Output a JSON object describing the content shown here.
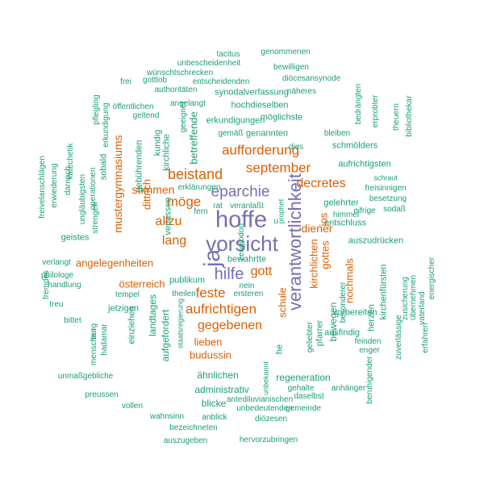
{
  "colors": {
    "purple": "#7570b3",
    "orange": "#d95f02",
    "teal": "#1b9e77"
  },
  "words": [
    {
      "t": "vorsicht",
      "c": "purple",
      "v": false
    },
    {
      "t": "hoffe",
      "c": "purple",
      "v": false
    },
    {
      "t": "eparchie",
      "c": "purple",
      "v": false
    },
    {
      "t": "hilfe",
      "c": "purple",
      "v": false
    },
    {
      "t": "ja",
      "c": "purple",
      "v": true
    },
    {
      "t": "verantwortlichkeit",
      "c": "purple",
      "v": true
    },
    {
      "t": "aufforderung",
      "c": "orange",
      "v": false
    },
    {
      "t": "september",
      "c": "orange",
      "v": false
    },
    {
      "t": "beistand",
      "c": "orange",
      "v": false
    },
    {
      "t": "möge",
      "c": "orange",
      "v": false
    },
    {
      "t": "allzu",
      "c": "orange",
      "v": false
    },
    {
      "t": "lang",
      "c": "orange",
      "v": false
    },
    {
      "t": "gott",
      "c": "orange",
      "v": false
    },
    {
      "t": "feste",
      "c": "orange",
      "v": false
    },
    {
      "t": "aufrichtigen",
      "c": "orange",
      "v": false
    },
    {
      "t": "gegebenen",
      "c": "orange",
      "v": false
    },
    {
      "t": "decretes",
      "c": "orange",
      "v": false
    },
    {
      "t": "stimmen",
      "c": "orange",
      "v": false
    },
    {
      "t": "diener",
      "c": "orange",
      "v": false
    },
    {
      "t": "angelegenheiten",
      "c": "orange",
      "v": false
    },
    {
      "t": "österreich",
      "c": "orange",
      "v": false
    },
    {
      "t": "lieben",
      "c": "orange",
      "v": false
    },
    {
      "t": "budussin",
      "c": "orange",
      "v": false
    },
    {
      "t": "mustergymnasiums",
      "c": "orange",
      "v": true
    },
    {
      "t": "dittrich",
      "c": "orange",
      "v": true
    },
    {
      "t": "schule",
      "c": "orange",
      "v": true
    },
    {
      "t": "nochmals",
      "c": "orange",
      "v": true
    },
    {
      "t": "gottes",
      "c": "orange",
      "v": true
    },
    {
      "t": "jos",
      "c": "orange",
      "v": true
    },
    {
      "t": "kirchlichen",
      "c": "orange",
      "v": true
    },
    {
      "t": "aufrichtigsten",
      "c": "teal",
      "v": false
    },
    {
      "t": "schmölders",
      "c": "teal",
      "v": false
    },
    {
      "t": "tacitus",
      "c": "teal",
      "v": false
    },
    {
      "t": "genommenen",
      "c": "teal",
      "v": false
    },
    {
      "t": "unbescheidenheit",
      "c": "teal",
      "v": false
    },
    {
      "t": "bewilligen",
      "c": "teal",
      "v": false
    },
    {
      "t": "wünschtschrecken",
      "c": "teal",
      "v": false
    },
    {
      "t": "gottlob",
      "c": "teal",
      "v": false
    },
    {
      "t": "entscheidenden",
      "c": "teal",
      "v": false
    },
    {
      "t": "diöcesansynode",
      "c": "teal",
      "v": false
    },
    {
      "t": "authoritäten",
      "c": "teal",
      "v": false
    },
    {
      "t": "synodalverfassung",
      "c": "teal",
      "v": false
    },
    {
      "t": "näheres",
      "c": "teal",
      "v": false
    },
    {
      "t": "angelangt",
      "c": "teal",
      "v": false
    },
    {
      "t": "hochdieselben",
      "c": "teal",
      "v": false
    },
    {
      "t": "öffentlichen",
      "c": "teal",
      "v": false
    },
    {
      "t": "geltend",
      "c": "teal",
      "v": false
    },
    {
      "t": "möglichste",
      "c": "teal",
      "v": false
    },
    {
      "t": "erkundigungen",
      "c": "teal",
      "v": false
    },
    {
      "t": "gemäß",
      "c": "teal",
      "v": false
    },
    {
      "t": "genannten",
      "c": "teal",
      "v": false
    },
    {
      "t": "bleiben",
      "c": "teal",
      "v": false
    },
    {
      "t": "dies",
      "c": "teal",
      "v": false
    },
    {
      "t": "schraut",
      "c": "teal",
      "v": false
    },
    {
      "t": "freisinnigen",
      "c": "teal",
      "v": false
    },
    {
      "t": "besetzung",
      "c": "teal",
      "v": false
    },
    {
      "t": "rat",
      "c": "teal",
      "v": false
    },
    {
      "t": "veranlaßt",
      "c": "teal",
      "v": false
    },
    {
      "t": "gelehrter",
      "c": "teal",
      "v": false
    },
    {
      "t": "himmel",
      "c": "teal",
      "v": false
    },
    {
      "t": "eifrige",
      "c": "teal",
      "v": false
    },
    {
      "t": "sodaß",
      "c": "teal",
      "v": false
    },
    {
      "t": "u",
      "c": "teal",
      "v": false
    },
    {
      "t": "entschluss",
      "c": "teal",
      "v": false
    },
    {
      "t": "geistes",
      "c": "teal",
      "v": false
    },
    {
      "t": "bewahrtte",
      "c": "teal",
      "v": false
    },
    {
      "t": "auszudrücken",
      "c": "teal",
      "v": false
    },
    {
      "t": "verlangt",
      "c": "teal",
      "v": false
    },
    {
      "t": "philologe",
      "c": "teal",
      "v": false
    },
    {
      "t": "handlung",
      "c": "teal",
      "v": false
    },
    {
      "t": "publikum",
      "c": "teal",
      "v": false
    },
    {
      "t": "nein",
      "c": "teal",
      "v": false
    },
    {
      "t": "ersteren",
      "c": "teal",
      "v": false
    },
    {
      "t": "theilen",
      "c": "teal",
      "v": false
    },
    {
      "t": "treu",
      "c": "teal",
      "v": false
    },
    {
      "t": "jetzigen",
      "c": "teal",
      "v": false
    },
    {
      "t": "tempel",
      "c": "teal",
      "v": false
    },
    {
      "t": "bittet",
      "c": "teal",
      "v": false
    },
    {
      "t": "vorbereiten",
      "c": "teal",
      "v": false
    },
    {
      "t": "ausfindig",
      "c": "teal",
      "v": false
    },
    {
      "t": "feinden",
      "c": "teal",
      "v": false
    },
    {
      "t": "enger",
      "c": "teal",
      "v": false
    },
    {
      "t": "ähnlichen",
      "c": "teal",
      "v": false
    },
    {
      "t": "regeneration",
      "c": "teal",
      "v": false
    },
    {
      "t": "administrativ",
      "c": "teal",
      "v": false
    },
    {
      "t": "unmaßgebliche",
      "c": "teal",
      "v": false
    },
    {
      "t": "gehalte",
      "c": "teal",
      "v": false
    },
    {
      "t": "anhänger",
      "c": "teal",
      "v": false
    },
    {
      "t": "blicke",
      "c": "teal",
      "v": false
    },
    {
      "t": "daselbst",
      "c": "teal",
      "v": false
    },
    {
      "t": "preussen",
      "c": "teal",
      "v": false
    },
    {
      "t": "antediluvianischen",
      "c": "teal",
      "v": false
    },
    {
      "t": "vollen",
      "c": "teal",
      "v": false
    },
    {
      "t": "unbedeutenden",
      "c": "teal",
      "v": false
    },
    {
      "t": "gemeinde",
      "c": "teal",
      "v": false
    },
    {
      "t": "wahnsinn",
      "c": "teal",
      "v": false
    },
    {
      "t": "anblick",
      "c": "teal",
      "v": false
    },
    {
      "t": "diözesen",
      "c": "teal",
      "v": false
    },
    {
      "t": "bezeichneten",
      "c": "teal",
      "v": false
    },
    {
      "t": "auszugeben",
      "c": "teal",
      "v": false
    },
    {
      "t": "hervorzubringen",
      "c": "teal",
      "v": false
    },
    {
      "t": "erklärungen",
      "c": "teal",
      "v": false
    },
    {
      "t": "fern",
      "c": "teal",
      "v": false
    },
    {
      "t": "frei",
      "c": "teal",
      "v": false
    },
    {
      "t": "pflegling",
      "c": "teal",
      "v": true
    },
    {
      "t": "erkundigung",
      "c": "teal",
      "v": true
    },
    {
      "t": "katechetik",
      "c": "teal",
      "v": true
    },
    {
      "t": "darnach",
      "c": "teal",
      "v": true
    },
    {
      "t": "erwiederung",
      "c": "teal",
      "v": true
    },
    {
      "t": "freivelanschlägen",
      "c": "teal",
      "v": true
    },
    {
      "t": "ungläubigsten",
      "c": "teal",
      "v": true
    },
    {
      "t": "operationen",
      "c": "teal",
      "v": true
    },
    {
      "t": "strengen",
      "c": "teal",
      "v": true
    },
    {
      "t": "sobald",
      "c": "teal",
      "v": true
    },
    {
      "t": "gebührenden",
      "c": "teal",
      "v": true
    },
    {
      "t": "kundig",
      "c": "teal",
      "v": true
    },
    {
      "t": "kirchliche",
      "c": "teal",
      "v": true
    },
    {
      "t": "betreffende",
      "c": "teal",
      "v": true
    },
    {
      "t": "geeignet",
      "c": "teal",
      "v": true
    },
    {
      "t": "verlassen",
      "c": "teal",
      "v": true
    },
    {
      "t": "einziehen",
      "c": "teal",
      "v": true
    },
    {
      "t": "landtages",
      "c": "teal",
      "v": true
    },
    {
      "t": "aufgefordert",
      "c": "teal",
      "v": true
    },
    {
      "t": "staatsregierung",
      "c": "teal",
      "v": true
    },
    {
      "t": "burg",
      "c": "teal",
      "v": true
    },
    {
      "t": "hadamar",
      "c": "teal",
      "v": true
    },
    {
      "t": "menschen",
      "c": "teal",
      "v": true
    },
    {
      "t": "fremdes",
      "c": "teal",
      "v": true
    },
    {
      "t": "prophet",
      "c": "teal",
      "v": true
    },
    {
      "t": "he",
      "c": "teal",
      "v": true
    },
    {
      "t": "unbekannt",
      "c": "teal",
      "v": true
    },
    {
      "t": "pfarrer",
      "c": "teal",
      "v": true
    },
    {
      "t": "bewegen",
      "c": "teal",
      "v": true
    },
    {
      "t": "besonderer",
      "c": "teal",
      "v": true
    },
    {
      "t": "geliebter",
      "c": "teal",
      "v": true
    },
    {
      "t": "herzen",
      "c": "teal",
      "v": true
    },
    {
      "t": "kirchenfürsten",
      "c": "teal",
      "v": true
    },
    {
      "t": "bedrängten",
      "c": "teal",
      "v": true
    },
    {
      "t": "erprobter",
      "c": "teal",
      "v": true
    },
    {
      "t": "theuern",
      "c": "teal",
      "v": true
    },
    {
      "t": "bibliothekar",
      "c": "teal",
      "v": true
    },
    {
      "t": "zuverlässige",
      "c": "teal",
      "v": true
    },
    {
      "t": "zusicherung",
      "c": "teal",
      "v": true
    },
    {
      "t": "übernehmen",
      "c": "teal",
      "v": true
    },
    {
      "t": "erfahren",
      "c": "teal",
      "v": true
    },
    {
      "t": "vaterland",
      "c": "teal",
      "v": true
    },
    {
      "t": "energischer",
      "c": "teal",
      "v": true
    },
    {
      "t": "beruhigender",
      "c": "teal",
      "v": true
    },
    {
      "t": "zeuglodon",
      "c": "teal",
      "v": true
    }
  ]
}
